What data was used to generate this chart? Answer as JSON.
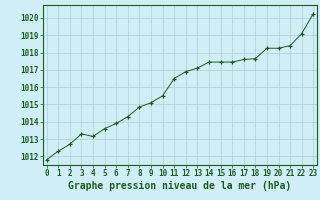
{
  "x": [
    0,
    1,
    2,
    3,
    4,
    5,
    6,
    7,
    8,
    9,
    10,
    11,
    12,
    13,
    14,
    15,
    16,
    17,
    18,
    19,
    20,
    21,
    22,
    23
  ],
  "y": [
    1011.8,
    1012.3,
    1012.7,
    1013.3,
    1013.15,
    1013.6,
    1013.9,
    1014.3,
    1014.85,
    1015.1,
    1015.5,
    1016.5,
    1016.9,
    1017.1,
    1017.45,
    1017.45,
    1017.45,
    1017.6,
    1017.65,
    1018.25,
    1018.25,
    1018.4,
    1019.1,
    1020.25
  ],
  "line_color": "#1e5c1e",
  "marker": "+",
  "marker_color": "#1e5c1e",
  "background_color": "#d0eef5",
  "grid_color": "#b0cdd8",
  "text_color": "#1e5c1e",
  "xlabel": "Graphe pression niveau de la mer (hPa)",
  "ylim": [
    1011.5,
    1020.75
  ],
  "yticks": [
    1012,
    1013,
    1014,
    1015,
    1016,
    1017,
    1018,
    1019,
    1020
  ],
  "xticks": [
    0,
    1,
    2,
    3,
    4,
    5,
    6,
    7,
    8,
    9,
    10,
    11,
    12,
    13,
    14,
    15,
    16,
    17,
    18,
    19,
    20,
    21,
    22,
    23
  ],
  "xlim": [
    -0.3,
    23.3
  ],
  "tick_fontsize": 5.5,
  "xlabel_fontsize": 7
}
